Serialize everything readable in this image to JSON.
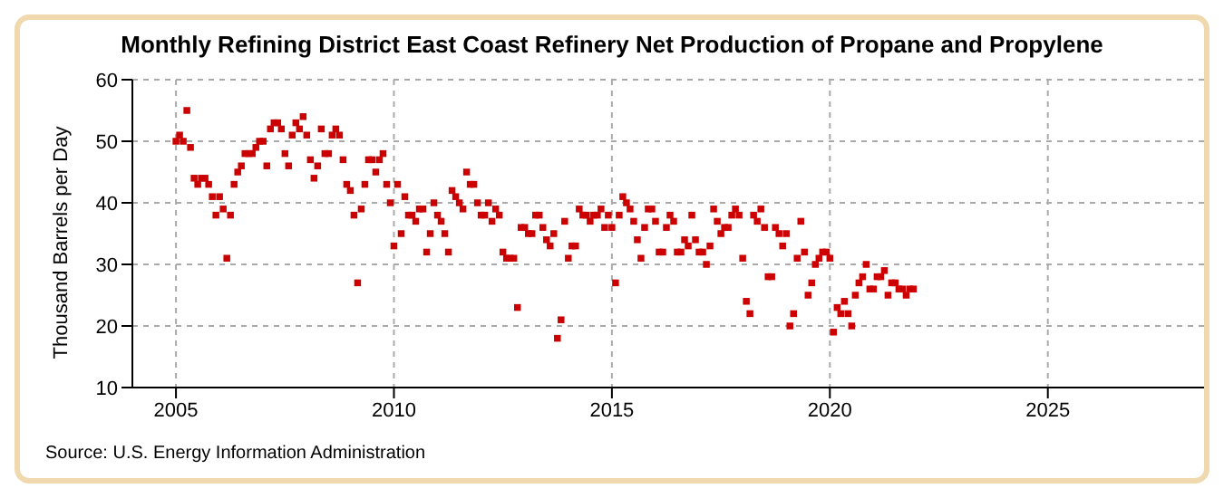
{
  "chart_data": {
    "type": "scatter",
    "title": "Monthly Refining District East Coast Refinery Net Production of Propane and Propylene",
    "ylabel": "Thousand Barrels per Day",
    "annotations": [
      "Source: U.S. Energy Information Administration"
    ],
    "x": [
      "2005-01",
      "2005-02",
      "2005-03",
      "2005-04",
      "2005-05",
      "2005-06",
      "2005-07",
      "2005-08",
      "2005-09",
      "2005-10",
      "2005-11",
      "2005-12",
      "2006-01",
      "2006-02",
      "2006-03",
      "2006-04",
      "2006-05",
      "2006-06",
      "2006-07",
      "2006-08",
      "2006-09",
      "2006-10",
      "2006-11",
      "2006-12",
      "2007-01",
      "2007-02",
      "2007-03",
      "2007-04",
      "2007-05",
      "2007-06",
      "2007-07",
      "2007-08",
      "2007-09",
      "2007-10",
      "2007-11",
      "2007-12",
      "2008-01",
      "2008-02",
      "2008-03",
      "2008-04",
      "2008-05",
      "2008-06",
      "2008-07",
      "2008-08",
      "2008-09",
      "2008-10",
      "2008-11",
      "2008-12",
      "2009-01",
      "2009-02",
      "2009-03",
      "2009-04",
      "2009-05",
      "2009-06",
      "2009-07",
      "2009-08",
      "2009-09",
      "2009-10",
      "2009-11",
      "2009-12",
      "2010-01",
      "2010-02",
      "2010-03",
      "2010-04",
      "2010-05",
      "2010-06",
      "2010-07",
      "2010-08",
      "2010-09",
      "2010-10",
      "2010-11",
      "2010-12",
      "2011-01",
      "2011-02",
      "2011-03",
      "2011-04",
      "2011-05",
      "2011-06",
      "2011-07",
      "2011-08",
      "2011-09",
      "2011-10",
      "2011-11",
      "2011-12",
      "2012-01",
      "2012-02",
      "2012-03",
      "2012-04",
      "2012-05",
      "2012-06",
      "2012-07",
      "2012-08",
      "2012-09",
      "2012-10",
      "2012-11",
      "2012-12",
      "2013-01",
      "2013-02",
      "2013-03",
      "2013-04",
      "2013-05",
      "2013-06",
      "2013-07",
      "2013-08",
      "2013-09",
      "2013-10",
      "2013-11",
      "2013-12",
      "2014-01",
      "2014-02",
      "2014-03",
      "2014-04",
      "2014-05",
      "2014-06",
      "2014-07",
      "2014-08",
      "2014-09",
      "2014-10",
      "2014-11",
      "2014-12",
      "2015-01",
      "2015-02",
      "2015-03",
      "2015-04",
      "2015-05",
      "2015-06",
      "2015-07",
      "2015-08",
      "2015-09",
      "2015-10",
      "2015-11",
      "2015-12",
      "2016-01",
      "2016-02",
      "2016-03",
      "2016-04",
      "2016-05",
      "2016-06",
      "2016-07",
      "2016-08",
      "2016-09",
      "2016-10",
      "2016-11",
      "2016-12",
      "2017-01",
      "2017-02",
      "2017-03",
      "2017-04",
      "2017-05",
      "2017-06",
      "2017-07",
      "2017-08",
      "2017-09",
      "2017-10",
      "2017-11",
      "2017-12",
      "2018-01",
      "2018-02",
      "2018-03",
      "2018-04",
      "2018-05",
      "2018-06",
      "2018-07",
      "2018-08",
      "2018-09",
      "2018-10",
      "2018-11",
      "2018-12",
      "2019-01",
      "2019-02",
      "2019-03",
      "2019-04",
      "2019-05",
      "2019-06",
      "2019-07",
      "2019-08",
      "2019-09",
      "2019-10",
      "2019-11",
      "2019-12",
      "2020-01",
      "2020-02",
      "2020-03",
      "2020-04",
      "2020-05",
      "2020-06",
      "2020-07",
      "2020-08",
      "2020-09",
      "2020-10",
      "2020-11",
      "2020-12",
      "2021-01",
      "2021-02",
      "2021-03",
      "2021-04",
      "2021-05",
      "2021-06",
      "2021-07",
      "2021-08",
      "2021-09",
      "2021-10",
      "2021-11",
      "2021-12"
    ],
    "series": [
      {
        "color": "#cc0000",
        "values": [
          50,
          51,
          50,
          55,
          49,
          44,
          43,
          44,
          44,
          43,
          41,
          38,
          41,
          39,
          31,
          38,
          43,
          45,
          46,
          48,
          48,
          48,
          49,
          50,
          50,
          46,
          52,
          53,
          53,
          52,
          48,
          46,
          51,
          53,
          52,
          54,
          51,
          47,
          44,
          46,
          52,
          48,
          48,
          51,
          52,
          51,
          47,
          43,
          42,
          38,
          27,
          39,
          43,
          47,
          47,
          45,
          47,
          48,
          43,
          40,
          33,
          43,
          35,
          41,
          38,
          38,
          37,
          39,
          39,
          32,
          35,
          40,
          38,
          37,
          35,
          32,
          42,
          41,
          40,
          39,
          45,
          43,
          43,
          40,
          38,
          38,
          40,
          37,
          39,
          38,
          32,
          31,
          31,
          31,
          23,
          36,
          36,
          35,
          35,
          38,
          38,
          36,
          34,
          33,
          35,
          18,
          21,
          37,
          31,
          33,
          33,
          39,
          38,
          38,
          37,
          38,
          38,
          39,
          36,
          38,
          36,
          27,
          38,
          41,
          40,
          39,
          37,
          34,
          31,
          36,
          39,
          39,
          37,
          32,
          32,
          36,
          38,
          37,
          32,
          32,
          34,
          33,
          38,
          34,
          32,
          32,
          30,
          33,
          39,
          37,
          35,
          36,
          36,
          38,
          39,
          38,
          31,
          24,
          22,
          38,
          37,
          39,
          36,
          28,
          28,
          36,
          35,
          33,
          35,
          20,
          22,
          31,
          37,
          32,
          25,
          27,
          30,
          31,
          32,
          32,
          31,
          19,
          23,
          22,
          24,
          22,
          20,
          25,
          27,
          28,
          30,
          26,
          26,
          28,
          28,
          29,
          25,
          27,
          27,
          26,
          26,
          25,
          26,
          26
        ]
      }
    ],
    "xlim": [
      "2004-01",
      "2028-08"
    ],
    "xticks": [
      "2005",
      "2010",
      "2015",
      "2020",
      "2025"
    ],
    "ylim": [
      10,
      60
    ],
    "yticks": [
      10,
      20,
      30,
      40,
      50,
      60
    ],
    "grid": true,
    "marker": "square"
  }
}
